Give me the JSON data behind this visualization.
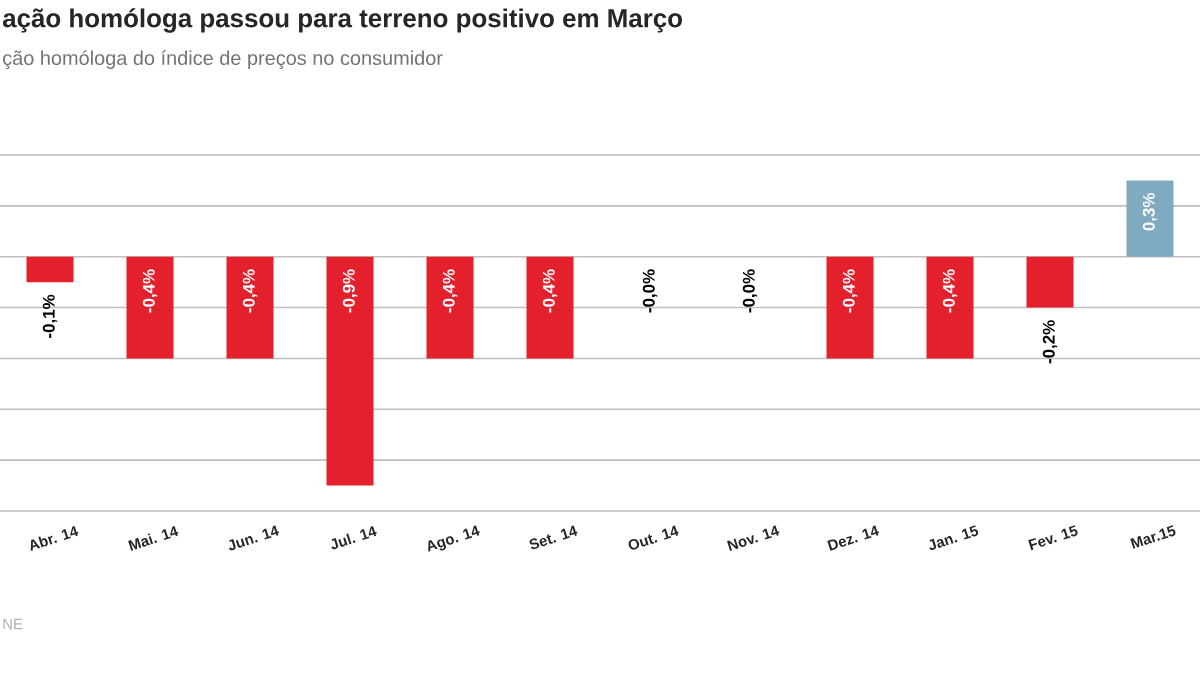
{
  "chart_data": {
    "type": "bar",
    "title": "ação homóloga passou para terreno positivo em Março",
    "subtitle": "ção homóloga do índice de preços no consumidor",
    "annotations": [
      "NE"
    ],
    "categories": [
      "Abr. 14",
      "Mai. 14",
      "Jun. 14",
      "Jul. 14",
      "Ago. 14",
      "Set. 14",
      "Out. 14",
      "Nov. 14",
      "Dez. 14",
      "Jan. 15",
      "Fev. 15",
      "Mar.15"
    ],
    "values": [
      -0.1,
      -0.4,
      -0.4,
      -0.9,
      -0.4,
      -0.4,
      0,
      0,
      -0.4,
      -0.4,
      -0.2,
      0.3
    ],
    "value_labels": [
      "-0,1%",
      "-0,4%",
      "-0,4%",
      "-0,9%",
      "-0,4%",
      "-0,4%",
      "-0,0%",
      "-0,0%",
      "-0,4%",
      "-0,4%",
      "-0,2%",
      "0,3%"
    ],
    "colors": [
      "#e3202b",
      "#e3202b",
      "#e3202b",
      "#e3202b",
      "#e3202b",
      "#e3202b",
      "#e3202b",
      "#e3202b",
      "#e3202b",
      "#e3202b",
      "#e3202b",
      "#80aabf"
    ],
    "ylim": [
      -1.0,
      0.4
    ],
    "yticks": [
      {
        "value": -1.0,
        "label": null
      },
      {
        "value": -0.8,
        "label": null
      },
      {
        "value": -0.6,
        "label": null
      },
      {
        "value": -0.4,
        "label": null
      },
      {
        "value": -0.2,
        "label": null
      },
      {
        "value": 0,
        "label": null
      },
      {
        "value": 0.2,
        "label": null
      },
      {
        "value": 0.4,
        "label": null
      }
    ],
    "grid": "y",
    "tick_labels": "x"
  }
}
